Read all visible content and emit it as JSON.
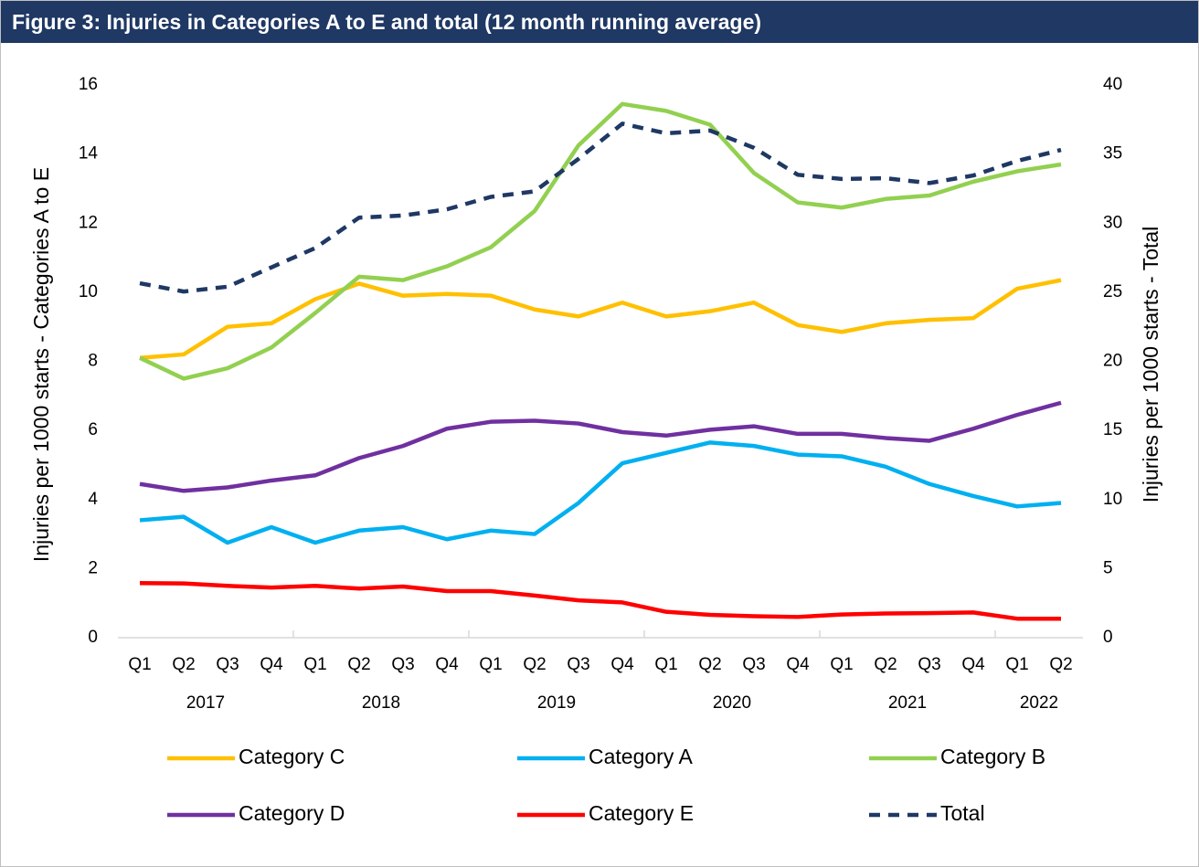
{
  "chart_data": {
    "type": "line",
    "title": "Figure 3: Injuries in Categories A to E and total (12 month running average)",
    "y_label": "Injuries per 1000 starts - Categories A to E",
    "y2_label": "Injuries per 1000 starts - Total",
    "categories": [
      "Q1",
      "Q2",
      "Q3",
      "Q4",
      "Q1",
      "Q2",
      "Q3",
      "Q4",
      "Q1",
      "Q2",
      "Q3",
      "Q4",
      "Q1",
      "Q2",
      "Q3",
      "Q4",
      "Q1",
      "Q2",
      "Q3",
      "Q4",
      "Q1",
      "Q2"
    ],
    "x_groups": [
      "2017",
      "2018",
      "2019",
      "2020",
      "2021",
      "2022"
    ],
    "ylim": [
      0,
      16
    ],
    "yticks": [
      0,
      2,
      4,
      6,
      8,
      10,
      12,
      14,
      16
    ],
    "y2lim": [
      0,
      40
    ],
    "y2ticks": [
      0,
      5,
      10,
      15,
      20,
      25,
      30,
      35,
      40
    ],
    "series": [
      {
        "name": "Category C",
        "color": "#ffc000",
        "values": [
          8.1,
          8.2,
          9.0,
          9.1,
          9.8,
          10.25,
          9.9,
          9.95,
          9.9,
          9.5,
          9.3,
          9.7,
          9.3,
          9.45,
          9.7,
          9.05,
          8.85,
          9.1,
          9.2,
          9.25,
          10.1,
          10.35
        ]
      },
      {
        "name": "Category A",
        "color": "#00b0f0",
        "values": [
          3.4,
          3.5,
          2.75,
          3.2,
          2.75,
          3.1,
          3.2,
          2.85,
          3.1,
          3.0,
          3.9,
          5.05,
          5.35,
          5.65,
          5.55,
          5.3,
          5.25,
          4.95,
          4.45,
          4.1,
          3.8,
          3.9
        ]
      },
      {
        "name": "Category B",
        "color": "#92d050",
        "values": [
          8.1,
          7.5,
          7.8,
          8.4,
          9.4,
          10.45,
          10.35,
          10.75,
          11.3,
          12.35,
          14.25,
          15.45,
          15.25,
          14.85,
          13.45,
          12.6,
          12.45,
          12.7,
          12.8,
          13.2,
          13.5,
          13.7
        ]
      },
      {
        "name": "Category D",
        "color": "#7030a0",
        "values": [
          4.45,
          4.25,
          4.35,
          4.55,
          4.7,
          5.2,
          5.55,
          6.05,
          6.25,
          6.28,
          6.2,
          5.95,
          5.85,
          6.02,
          6.12,
          5.9,
          5.9,
          5.78,
          5.7,
          6.05,
          6.45,
          6.8
        ]
      },
      {
        "name": "Category E",
        "color": "#ff0000",
        "values": [
          1.58,
          1.57,
          1.5,
          1.45,
          1.5,
          1.42,
          1.48,
          1.35,
          1.35,
          1.22,
          1.08,
          1.02,
          0.75,
          0.66,
          0.62,
          0.6,
          0.67,
          0.7,
          0.71,
          0.73,
          0.55,
          0.55
        ]
      },
      {
        "name": "Total",
        "color": "#1f3864",
        "dashed": true,
        "axis": "y2",
        "values": [
          25.65,
          25.05,
          25.4,
          26.8,
          28.2,
          30.4,
          30.55,
          31.0,
          31.9,
          32.3,
          34.65,
          37.2,
          36.5,
          36.7,
          35.45,
          33.5,
          33.2,
          33.25,
          32.9,
          33.45,
          34.5,
          35.3
        ]
      }
    ]
  }
}
